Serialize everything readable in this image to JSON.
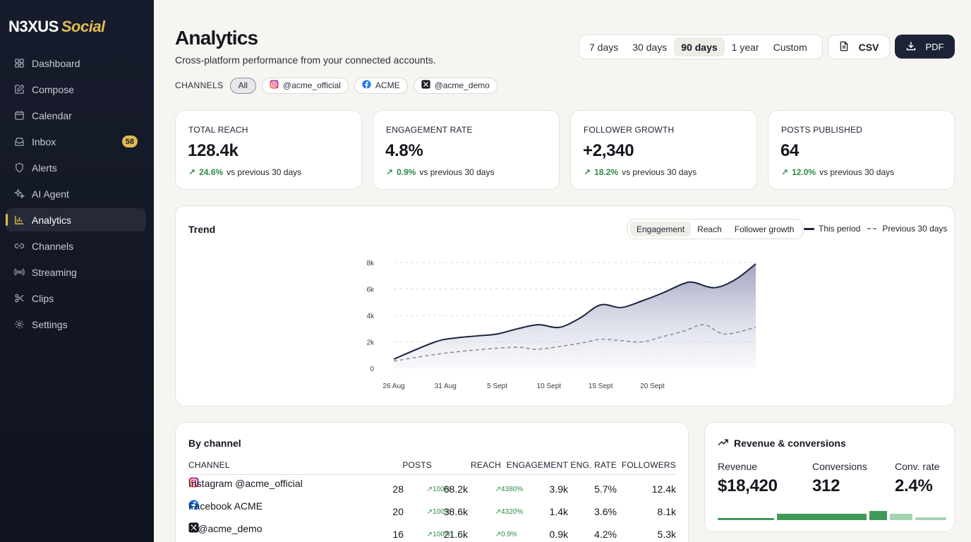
{
  "brand": {
    "part1": "N3XUS",
    "part2": "Social"
  },
  "sidebar": {
    "items": [
      {
        "label": "Dashboard",
        "icon": "grid-icon"
      },
      {
        "label": "Compose",
        "icon": "edit-icon"
      },
      {
        "label": "Calendar",
        "icon": "calendar-icon"
      },
      {
        "label": "Inbox",
        "icon": "inbox-icon",
        "badge": "58"
      },
      {
        "label": "Alerts",
        "icon": "shield-icon"
      },
      {
        "label": "AI Agent",
        "icon": "sparkle-icon"
      },
      {
        "label": "Analytics",
        "icon": "bar-chart-icon",
        "active": true
      },
      {
        "label": "Channels",
        "icon": "link-icon"
      },
      {
        "label": "Streaming",
        "icon": "broadcast-icon"
      },
      {
        "label": "Clips",
        "icon": "scissors-icon"
      },
      {
        "label": "Settings",
        "icon": "gear-icon"
      }
    ]
  },
  "header": {
    "title": "Analytics",
    "subtitle": "Cross-platform performance from your connected accounts.",
    "ranges": [
      "7 days",
      "30 days",
      "90 days",
      "1 year",
      "Custom"
    ],
    "selected_range": "90 days",
    "csv_label": "CSV",
    "pdf_label": "PDF"
  },
  "channels": {
    "label": "CHANNELS",
    "chips": [
      {
        "label": "All",
        "selected": true
      },
      {
        "label": "@acme_official",
        "icon": "instagram-icon"
      },
      {
        "label": "ACME",
        "icon": "facebook-icon"
      },
      {
        "label": "@acme_demo",
        "icon": "x-icon"
      }
    ]
  },
  "kpis": [
    {
      "label": "TOTAL REACH",
      "value": "128.4k",
      "delta": "24.6%",
      "compare": "vs previous 30 days"
    },
    {
      "label": "ENGAGEMENT RATE",
      "value": "4.8%",
      "delta": "0.9%",
      "compare": "vs previous 30 days"
    },
    {
      "label": "FOLLOWER GROWTH",
      "value": "+2,340",
      "delta": "18.2%",
      "compare": "vs previous 30 days"
    },
    {
      "label": "POSTS PUBLISHED",
      "value": "64",
      "delta": "12.0%",
      "compare": "vs previous 30 days"
    }
  ],
  "trend": {
    "title": "Trend",
    "metrics": [
      "Engagement",
      "Reach",
      "Follower growth"
    ],
    "selected_metric": "Engagement",
    "legend": {
      "current": "This period",
      "previous": "Previous 30 days"
    },
    "colors": {
      "current": "#1c2440",
      "previous": "#8c8f98",
      "fill": "#c9cbdc"
    }
  },
  "chart_data": {
    "type": "area",
    "x_ticks": [
      "26 Aug",
      "31 Aug",
      "5 Sept",
      "10 Sept",
      "15 Sept",
      "20 Sept"
    ],
    "y_ticks": [
      "0",
      "2k",
      "4k",
      "6k",
      "8k"
    ],
    "ylim": [
      0,
      8000
    ],
    "x_range_days": [
      0,
      29
    ],
    "series": [
      {
        "name": "This period",
        "style": "solid",
        "points": [
          [
            0,
            700
          ],
          [
            4,
            2000
          ],
          [
            6,
            2300
          ],
          [
            8,
            2450
          ],
          [
            10,
            2600
          ],
          [
            12,
            3000
          ],
          [
            14,
            3300
          ],
          [
            16,
            3100
          ],
          [
            18,
            3800
          ],
          [
            20,
            4800
          ],
          [
            22,
            4600
          ],
          [
            24,
            5100
          ],
          [
            26,
            5700
          ],
          [
            28,
            6400
          ],
          [
            29,
            6500
          ],
          [
            31,
            6100
          ],
          [
            33,
            6700
          ],
          [
            35,
            7900
          ]
        ]
      },
      {
        "name": "Previous 30 days",
        "style": "dashed",
        "points": [
          [
            0,
            550
          ],
          [
            4,
            1050
          ],
          [
            8,
            1400
          ],
          [
            12,
            1600
          ],
          [
            14,
            1450
          ],
          [
            18,
            1900
          ],
          [
            20,
            2200
          ],
          [
            22,
            2100
          ],
          [
            24,
            2000
          ],
          [
            26,
            2400
          ],
          [
            28,
            2800
          ],
          [
            30,
            3300
          ],
          [
            32,
            2600
          ],
          [
            35,
            3100
          ]
        ]
      }
    ]
  },
  "by_channel": {
    "title": "By channel",
    "headers": [
      "CHANNEL",
      "POSTS",
      "REACH",
      "ENGAGEMENT",
      "ENG. RATE",
      "FOLLOWERS"
    ],
    "rows": [
      {
        "icon": "instagram-icon",
        "name": "Instagram @acme_official",
        "posts": "28",
        "posts_delta": "100%",
        "reach": "68.2k",
        "reach_delta": "4380%",
        "engagement": "3.9k",
        "eng_rate": "5.7%",
        "followers": "12.4k"
      },
      {
        "icon": "facebook-icon",
        "name": "Facebook ACME",
        "posts": "20",
        "posts_delta": "100%",
        "reach": "38.6k",
        "reach_delta": "4320%",
        "engagement": "1.4k",
        "eng_rate": "3.6%",
        "followers": "8.1k"
      },
      {
        "icon": "x-icon",
        "name": "X @acme_demo",
        "posts": "16",
        "posts_delta": "100%",
        "reach": "21.6k",
        "reach_delta": "0.9%",
        "engagement": "0.9k",
        "eng_rate": "4.2%",
        "followers": "5.3k"
      }
    ]
  },
  "revenue": {
    "title": "Revenue & conversions",
    "metrics": [
      {
        "label": "Revenue",
        "value": "$18,420"
      },
      {
        "label": "Conversions",
        "value": "312"
      },
      {
        "label": "Conv. rate",
        "value": "2.4%"
      }
    ],
    "bars": [
      {
        "share": 0.25,
        "level": 0.15,
        "color": "#3f9a5a"
      },
      {
        "share": 0.4,
        "level": 0.45,
        "color": "#3f9a5a"
      },
      {
        "share": 0.08,
        "level": 0.65,
        "color": "#3f9a5a"
      },
      {
        "share": 0.1,
        "level": 0.45,
        "color": "#a6d3b1"
      },
      {
        "share": 0.14,
        "level": 0.2,
        "color": "#a6d3b1"
      }
    ]
  }
}
